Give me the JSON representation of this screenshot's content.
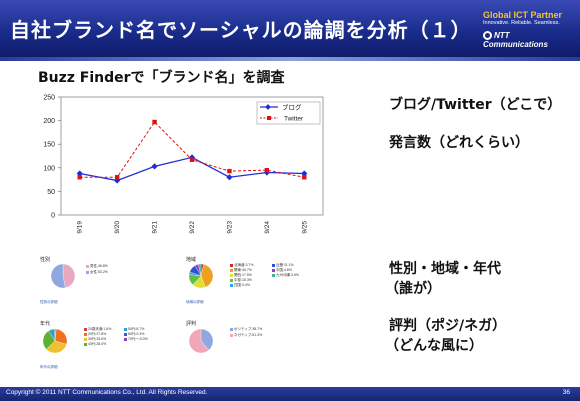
{
  "header": {
    "title": "自社ブランド名でソーシャルの論調を分析（１）",
    "brand_line1": "Global ICT Partner",
    "brand_line2": "Innovative. Reliable. Seamless.",
    "brand_line3": "NTT Communications"
  },
  "subtitle": "Buzz Finderで「ブランド名」を調査",
  "right_notes": {
    "n1": "ブログ/Twitter（どこで）",
    "n2": "発言数（どれくらい）",
    "n3a": "性別・地域・年代",
    "n3b": "（誰が）",
    "n4a": "評判（ポジ/ネガ）",
    "n4b": "（どんな風に）"
  },
  "chart_data": {
    "type": "line",
    "categories": [
      "9/19",
      "9/20",
      "9/21",
      "9/22",
      "9/23",
      "9/24",
      "9/25"
    ],
    "ylim": [
      0,
      250
    ],
    "yticks": [
      0,
      50,
      100,
      150,
      200,
      250
    ],
    "series": [
      {
        "name": "ブログ",
        "values": [
          88,
          73,
          103,
          122,
          80,
          90,
          88
        ],
        "color": "#1f2fd6"
      },
      {
        "name": "Twitter",
        "values": [
          80,
          80,
          197,
          117,
          93,
          95,
          80
        ],
        "color": "#e01010"
      }
    ]
  },
  "mini_charts": {
    "gender": {
      "title": "性別",
      "legend": [
        "男性:46.8%",
        "女性:53.2%"
      ],
      "link": "性別の詳細",
      "slices": [
        46.8,
        53.2
      ],
      "colors": [
        "#e9a8c0",
        "#8fa8e0"
      ]
    },
    "region": {
      "title": "地域",
      "legend": [
        "北海道:3.7%",
        "関東:40.7%",
        "関西:17.5%",
        "中部:15.3%",
        "四国:3.4%",
        "近畿:11.1%",
        "中国:4.8%",
        "九州沖縄:3.5%"
      ],
      "link": "地域の詳細",
      "slices": [
        3.7,
        40.7,
        17.5,
        15.3,
        3.4,
        11.1,
        4.8,
        3.5
      ],
      "colors": [
        "#c83030",
        "#f0a020",
        "#e0e030",
        "#60c040",
        "#30a0e0",
        "#3050d0",
        "#9040c0",
        "#40b0a0"
      ]
    },
    "age": {
      "title": "年代",
      "legend": [
        "20歳未満:1.6%",
        "20代:27.8%",
        "30代:33.6%",
        "40代:28.0%",
        "50代:8.7%",
        "60代:0.3%",
        "70代〜:0.0%"
      ],
      "link": "年代の詳細",
      "slices": [
        1.6,
        27.8,
        33.6,
        28.0,
        8.7,
        0.3
      ],
      "colors": [
        "#d04040",
        "#f07020",
        "#f0c030",
        "#60b030",
        "#30a0d0",
        "#3060d0",
        "#9040c0"
      ]
    },
    "reputation": {
      "title": "評判",
      "legend": [
        "ポジティブ:38.7%",
        "ネガティブ:61.3%"
      ],
      "slices": [
        38.7,
        61.3
      ],
      "colors": [
        "#8fa8e0",
        "#f0a8b8"
      ]
    }
  },
  "footer": {
    "copyright": "Copyright © 2011 NTT Communications Co., Ltd. All Rights Reserved.",
    "page": "36"
  }
}
